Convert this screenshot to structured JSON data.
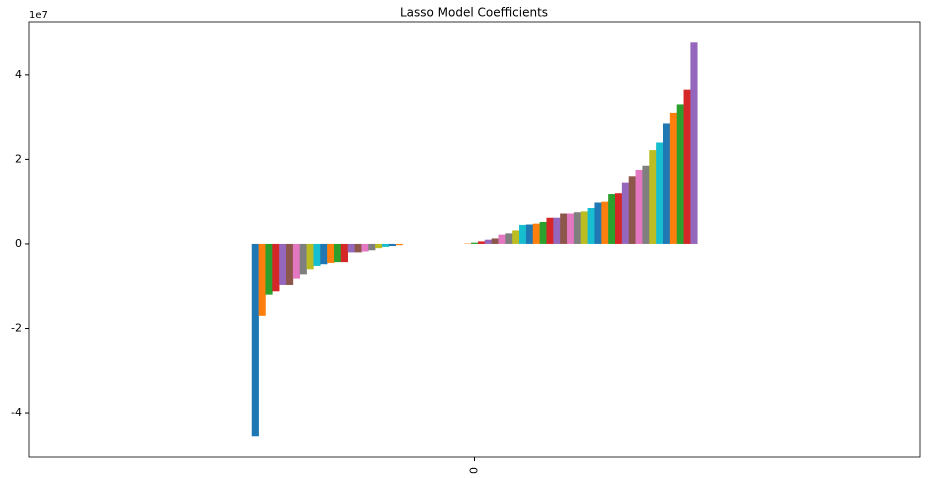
{
  "chart_data": {
    "type": "bar",
    "title": "Lasso Model Coefficients",
    "offset_label": "1e7",
    "categories": [
      "0"
    ],
    "palette": [
      "#1f77b4",
      "#ff7f0e",
      "#2ca02c",
      "#d62728",
      "#9467bd",
      "#8c564b",
      "#e377c2",
      "#7f7f7f",
      "#bcbd22",
      "#17becf"
    ],
    "series": [
      {
        "values": [
          -4.55
        ]
      },
      {
        "values": [
          -1.7
        ]
      },
      {
        "values": [
          -1.2
        ]
      },
      {
        "values": [
          -1.12
        ]
      },
      {
        "values": [
          -0.97
        ]
      },
      {
        "values": [
          -0.97
        ]
      },
      {
        "values": [
          -0.82
        ]
      },
      {
        "values": [
          -0.72
        ]
      },
      {
        "values": [
          -0.6
        ]
      },
      {
        "values": [
          -0.52
        ]
      },
      {
        "values": [
          -0.48
        ]
      },
      {
        "values": [
          -0.45
        ]
      },
      {
        "values": [
          -0.43
        ]
      },
      {
        "values": [
          -0.43
        ]
      },
      {
        "values": [
          -0.2
        ]
      },
      {
        "values": [
          -0.2
        ]
      },
      {
        "values": [
          -0.18
        ]
      },
      {
        "values": [
          -0.15
        ]
      },
      {
        "values": [
          -0.1
        ]
      },
      {
        "values": [
          -0.07
        ]
      },
      {
        "values": [
          -0.05
        ]
      },
      {
        "values": [
          -0.03
        ]
      },
      {
        "values": [
          0
        ]
      },
      {
        "values": [
          0
        ]
      },
      {
        "values": [
          0
        ]
      },
      {
        "values": [
          0
        ]
      },
      {
        "values": [
          0
        ]
      },
      {
        "values": [
          0
        ]
      },
      {
        "values": [
          0
        ]
      },
      {
        "values": [
          0
        ]
      },
      {
        "values": [
          0
        ]
      },
      {
        "values": [
          0.01
        ]
      },
      {
        "values": [
          0.03
        ]
      },
      {
        "values": [
          0.06
        ]
      },
      {
        "values": [
          0.1
        ]
      },
      {
        "values": [
          0.13
        ]
      },
      {
        "values": [
          0.22
        ]
      },
      {
        "values": [
          0.25
        ]
      },
      {
        "values": [
          0.32
        ]
      },
      {
        "values": [
          0.45
        ]
      },
      {
        "values": [
          0.46
        ]
      },
      {
        "values": [
          0.48
        ]
      },
      {
        "values": [
          0.52
        ]
      },
      {
        "values": [
          0.62
        ]
      },
      {
        "values": [
          0.62
        ]
      },
      {
        "values": [
          0.72
        ]
      },
      {
        "values": [
          0.72
        ]
      },
      {
        "values": [
          0.75
        ]
      },
      {
        "values": [
          0.77
        ]
      },
      {
        "values": [
          0.85
        ]
      },
      {
        "values": [
          0.98
        ]
      },
      {
        "values": [
          1.0
        ]
      },
      {
        "values": [
          1.18
        ]
      },
      {
        "values": [
          1.2
        ]
      },
      {
        "values": [
          1.45
        ]
      },
      {
        "values": [
          1.6
        ]
      },
      {
        "values": [
          1.75
        ]
      },
      {
        "values": [
          1.85
        ]
      },
      {
        "values": [
          2.22
        ]
      },
      {
        "values": [
          2.4
        ]
      },
      {
        "values": [
          2.85
        ]
      },
      {
        "values": [
          3.1
        ]
      },
      {
        "values": [
          3.3
        ]
      },
      {
        "values": [
          3.65
        ]
      },
      {
        "values": [
          4.77
        ]
      }
    ],
    "ylim": [
      -5.04,
      5.25
    ],
    "yticks": [
      -4,
      -2,
      0,
      2,
      4
    ],
    "grid": false
  }
}
